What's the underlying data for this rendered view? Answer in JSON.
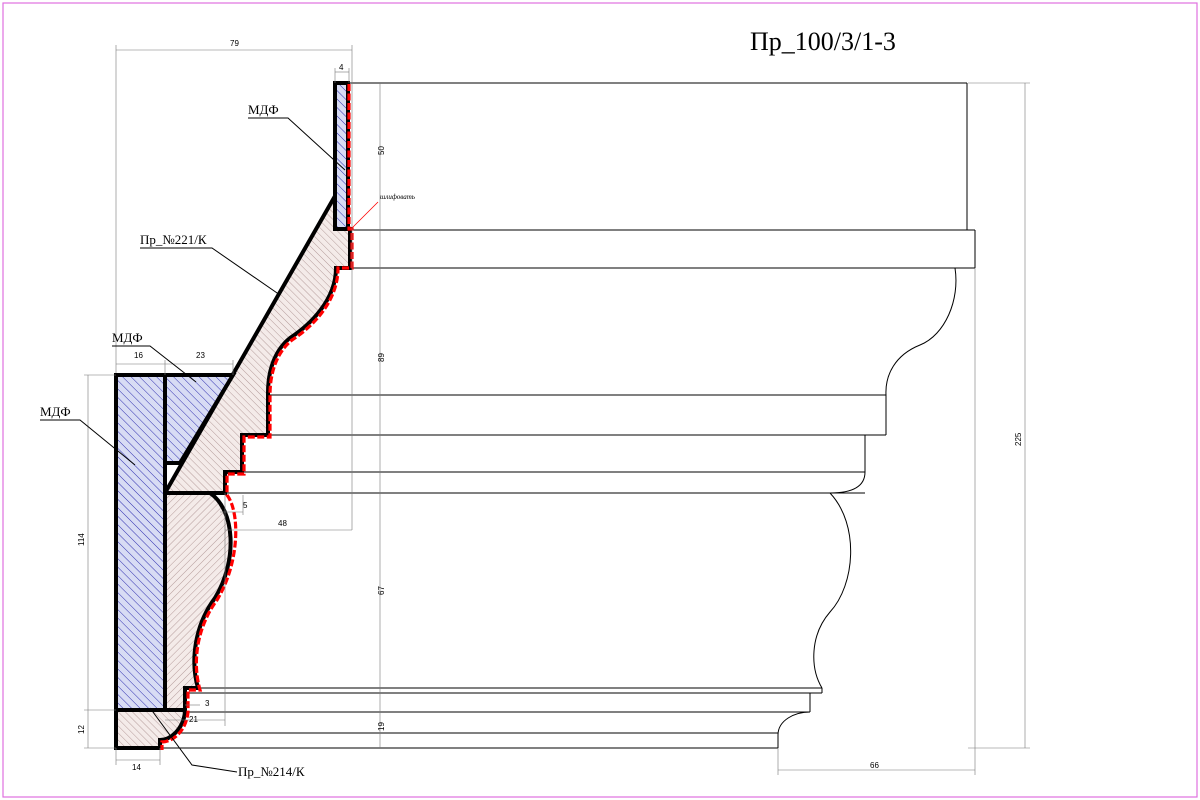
{
  "drawing": {
    "title": "Пр_100/3/1-3",
    "colors": {
      "frame": "#e070e0",
      "outline": "#000000",
      "sanding_line": "#ff0000",
      "mdf_hatch": "#3030b0",
      "mdf_fill": "#d8dcf4",
      "profile_hatch": "#9a7a7a",
      "profile_fill": "#f4ebe9"
    },
    "callouts": {
      "mdf_top": "МДФ",
      "profile_221": "Пр_№221/К",
      "mdf_middle": "МДФ",
      "mdf_left": "МДФ",
      "profile_214": "Пр_№214/К",
      "sanding": "шлифовать"
    },
    "dimensions": {
      "d79": "79",
      "d4": "4",
      "d50": "50",
      "d16": "16",
      "d23": "23",
      "d89": "89",
      "d225": "225",
      "d114": "114",
      "d5": "5",
      "d48": "48",
      "d67": "67",
      "d3": "3",
      "d21": "21",
      "d12": "12",
      "d19": "19",
      "d14": "14",
      "d66": "66"
    }
  }
}
